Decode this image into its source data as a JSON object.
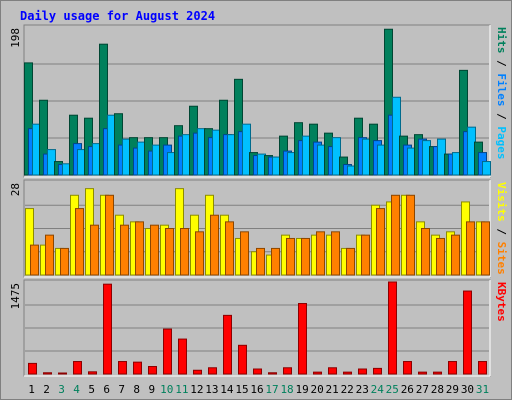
{
  "chart_data": {
    "type": "bar",
    "title": "Daily usage for August 2024",
    "categories": [
      "1",
      "2",
      "3",
      "4",
      "5",
      "6",
      "7",
      "8",
      "9",
      "10",
      "11",
      "12",
      "13",
      "14",
      "15",
      "16",
      "17",
      "18",
      "19",
      "20",
      "21",
      "22",
      "23",
      "24",
      "25",
      "26",
      "27",
      "28",
      "29",
      "30",
      "31"
    ],
    "weekend_days": [
      "3",
      "4",
      "10",
      "11",
      "17",
      "18",
      "24",
      "25",
      "31"
    ],
    "day_colors": {
      "weekday": "#000000",
      "weekend": "#00805c"
    },
    "panels": [
      {
        "id": "hits-files-pages",
        "ymax": 198,
        "ytick_label": "198",
        "side_labels": [
          {
            "text": "Pages",
            "color": "#00c0ff"
          },
          {
            "text": " / ",
            "color": "#000000"
          },
          {
            "text": "Files",
            "color": "#0080ff"
          },
          {
            "text": " / ",
            "color": "#000000"
          },
          {
            "text": "Hits",
            "color": "#00805c"
          }
        ],
        "series": [
          {
            "name": "Hits",
            "color": "#00805c",
            "values": [
              150,
              100,
              18,
              80,
              76,
              175,
              82,
              50,
              50,
              50,
              66,
              92,
              62,
              100,
              128,
              30,
              26,
              52,
              70,
              68,
              56,
              24,
              76,
              68,
              195,
              52,
              54,
              38,
              28,
              140,
              44
            ]
          },
          {
            "name": "Files",
            "color": "#0080ff",
            "values": [
              62,
              28,
              14,
              42,
              38,
              62,
              40,
              36,
              32,
              40,
              52,
              56,
              50,
              54,
              58,
              26,
              24,
              32,
              46,
              44,
              38,
              14,
              50,
              46,
              80,
              40,
              48,
              38,
              28,
              58,
              30
            ]
          },
          {
            "name": "Pages",
            "color": "#00c0ff",
            "values": [
              68,
              34,
              15,
              34,
              42,
              80,
              48,
              44,
              40,
              30,
              54,
              62,
              60,
              54,
              68,
              28,
              24,
              30,
              52,
              40,
              50,
              12,
              48,
              40,
              104,
              36,
              46,
              48,
              30,
              64,
              18
            ]
          }
        ]
      },
      {
        "id": "visits-sites",
        "ymax": 28,
        "ytick_label": "28",
        "side_labels": [
          {
            "text": "Sites",
            "color": "#ff8000"
          },
          {
            "text": " / ",
            "color": "#000000"
          },
          {
            "text": "Visits",
            "color": "#ffff00"
          }
        ],
        "series": [
          {
            "name": "Visits",
            "color": "#ffff00",
            "values": [
              20,
              9,
              8,
              24,
              26,
              24,
              18,
              16,
              14,
              15,
              26,
              18,
              24,
              18,
              11,
              7,
              6,
              12,
              11,
              12,
              12,
              8,
              12,
              21,
              22,
              24,
              16,
              12,
              13,
              22,
              16
            ]
          },
          {
            "name": "Sites",
            "color": "#ff8000",
            "values": [
              9,
              12,
              8,
              20,
              15,
              24,
              15,
              16,
              15,
              14,
              14,
              13,
              18,
              16,
              13,
              8,
              8,
              11,
              11,
              13,
              13,
              8,
              12,
              20,
              24,
              24,
              14,
              11,
              12,
              16,
              16
            ]
          }
        ]
      },
      {
        "id": "kbytes",
        "ymax": 1475,
        "ytick_label": "1475",
        "side_labels": [
          {
            "text": "KBytes",
            "color": "#ff0000"
          }
        ],
        "series": [
          {
            "name": "KBytes",
            "color": "#ff0000",
            "values": [
              170,
              20,
              15,
              200,
              35,
              1440,
              200,
              190,
              120,
              720,
              560,
              60,
              100,
              940,
              460,
              80,
              20,
              100,
              1130,
              30,
              100,
              30,
              80,
              90,
              1475,
              200,
              30,
              30,
              200,
              1330,
              200
            ]
          }
        ]
      }
    ]
  }
}
